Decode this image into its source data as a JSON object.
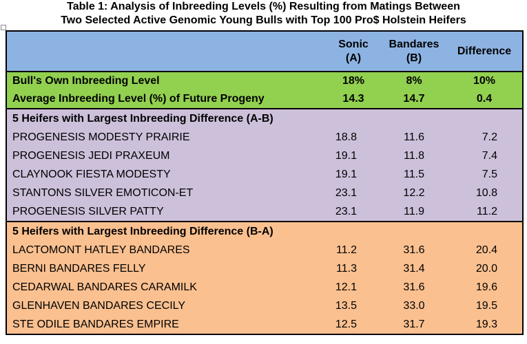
{
  "title": {
    "line1": "Table 1: Analysis of Inbreeding Levels (%) Resulting from Matings Between",
    "line2": "Two Selected Active Genomic Young Bulls with Top 100 Pro$ Holstein Heifers"
  },
  "colors": {
    "header": "#8db3e2",
    "summary": "#92d050",
    "section_ab": "#ccc0da",
    "section_ba": "#fac090"
  },
  "header": {
    "col_a": [
      "Sonic",
      "(A)"
    ],
    "col_b": [
      "Bandares",
      "(B)"
    ],
    "col_diff": "Difference"
  },
  "summary": [
    {
      "label": "Bull's Own Inbreeding Level",
      "a": "18%",
      "b": "8%",
      "diff": "10%"
    },
    {
      "label": "Average Inbreeding Level (%) of Future Progeny",
      "a": "14.3",
      "b": "14.7",
      "diff": "0.4"
    }
  ],
  "sections": [
    {
      "heading": "5 Heifers with Largest Inbreeding Difference (A-B)",
      "rows": [
        {
          "name": "PROGENESIS MODESTY PRAIRIE",
          "a": "18.8",
          "b": "11.6",
          "diff": "7.2"
        },
        {
          "name": "PROGENESIS JEDI PRAXEUM",
          "a": "19.1",
          "b": "11.8",
          "diff": "7.4"
        },
        {
          "name": "CLAYNOOK FIESTA MODESTY",
          "a": "19.1",
          "b": "11.5",
          "diff": "7.5"
        },
        {
          "name": "STANTONS SILVER EMOTICON-ET",
          "a": "23.1",
          "b": "12.2",
          "diff": "10.8"
        },
        {
          "name": "PROGENESIS SILVER PATTY",
          "a": "23.1",
          "b": "11.9",
          "diff": "11.2"
        }
      ]
    },
    {
      "heading": "5 Heifers with Largest Inbreeding Difference (B-A)",
      "rows": [
        {
          "name": "LACTOMONT HATLEY BANDARES",
          "a": "11.2",
          "b": "31.6",
          "diff": "20.4"
        },
        {
          "name": "BERNI BANDARES FELLY",
          "a": "11.3",
          "b": "31.4",
          "diff": "20.0"
        },
        {
          "name": "CEDARWAL BANDARES CARAMILK",
          "a": "12.1",
          "b": "31.6",
          "diff": "19.6"
        },
        {
          "name": "GLENHAVEN BANDARES CECILY",
          "a": "13.5",
          "b": "33.0",
          "diff": "19.5"
        },
        {
          "name": "STE ODILE BANDARES EMPIRE",
          "a": "12.5",
          "b": "31.7",
          "diff": "19.3"
        }
      ]
    }
  ]
}
